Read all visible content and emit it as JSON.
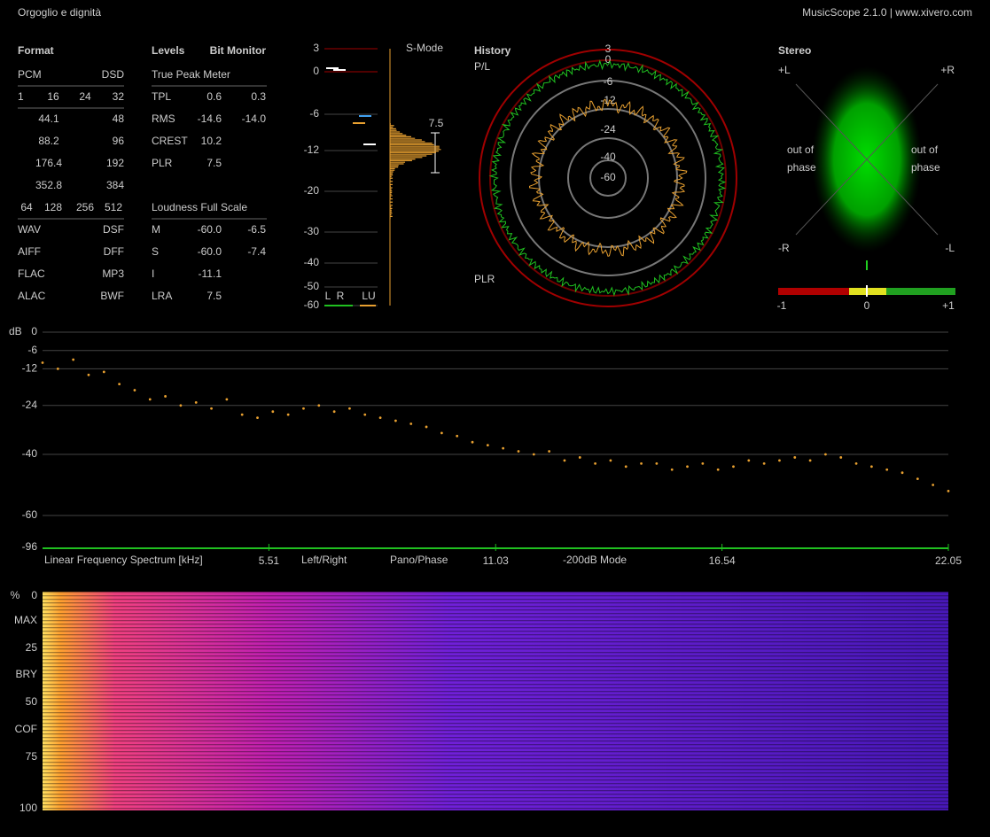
{
  "header": {
    "title": "Orgoglio e dignità",
    "app": "MusicScope 2.1.0 | www.xivero.com"
  },
  "format": {
    "title": "Format",
    "rows": [
      [
        "PCM",
        "DSD"
      ],
      [
        "1",
        "16",
        "24",
        "32"
      ],
      [
        "44.1",
        "48"
      ],
      [
        "88.2",
        "96"
      ],
      [
        "176.4",
        "192"
      ],
      [
        "352.8",
        "384"
      ],
      [
        "64",
        "128",
        "256",
        "512"
      ],
      [
        "WAV",
        "DSF"
      ],
      [
        "AIFF",
        "DFF"
      ],
      [
        "FLAC",
        "MP3"
      ],
      [
        "ALAC",
        "BWF"
      ]
    ]
  },
  "levels": {
    "title": "Levels",
    "bit_monitor": "Bit Monitor",
    "true_peak_title": "True Peak Meter",
    "true_peak_rows": [
      [
        "TPL",
        "0.6",
        "0.3"
      ],
      [
        "RMS",
        "-14.6",
        "-14.0"
      ],
      [
        "CREST",
        "10.2"
      ],
      [
        "PLR",
        "7.5"
      ]
    ],
    "loudness_title": "Loudness Full Scale",
    "loudness_rows": [
      [
        "M",
        "-60.0",
        "-6.5"
      ],
      [
        "S",
        "-60.0",
        "-7.4"
      ],
      [
        "I",
        "-11.1"
      ],
      [
        "LRA",
        "7.5"
      ]
    ]
  },
  "meter": {
    "mode": "S-Mode",
    "scale": [
      "3",
      "0",
      "-6",
      "-12",
      "-20",
      "-30",
      "-40",
      "-50",
      "-60"
    ],
    "lra_label": "7.5",
    "channels": [
      "L",
      "R",
      "LU"
    ]
  },
  "history": {
    "title": "History",
    "scale": [
      "3",
      "0",
      "-6",
      "-12",
      "-24",
      "-40",
      "-60"
    ],
    "top_label": "P/L",
    "bottom_label": "PLR"
  },
  "stereo": {
    "title": "Stereo",
    "corners": [
      "+L",
      "+R",
      "-R",
      "-L"
    ],
    "out_of_phase": [
      "out of",
      "phase"
    ],
    "balance_scale": [
      "-1",
      "0",
      "+1"
    ]
  },
  "spectrum": {
    "unit": "dB",
    "yticks": [
      0,
      -6,
      -12,
      -24,
      -40,
      -60,
      -96
    ],
    "xlim": [
      0,
      22.05
    ],
    "xticks": [
      5.51,
      11.03,
      16.54,
      22.05
    ],
    "title": "Linear Frequency Spectrum [kHz]",
    "modes": [
      "Left/Right",
      "Pano/Phase",
      "-200dB Mode"
    ],
    "values": [
      -10,
      -12,
      -9,
      -14,
      -13,
      -17,
      -19,
      -22,
      -21,
      -24,
      -23,
      -25,
      -22,
      -27,
      -28,
      -26,
      -27,
      -25,
      -24,
      -26,
      -25,
      -27,
      -28,
      -29,
      -30,
      -31,
      -33,
      -34,
      -36,
      -37,
      -38,
      -39,
      -40,
      -39,
      -42,
      -41,
      -43,
      -42,
      -44,
      -43,
      -43,
      -45,
      -44,
      -43,
      -45,
      -44,
      -42,
      -43,
      -42,
      -41,
      -42,
      -40,
      -41,
      -43,
      -44,
      -45,
      -46,
      -48,
      -50,
      -52
    ]
  },
  "spectrogram": {
    "labels": [
      "%",
      "0",
      "MAX",
      "25",
      "BRY",
      "50",
      "COF",
      "75",
      "100"
    ]
  }
}
